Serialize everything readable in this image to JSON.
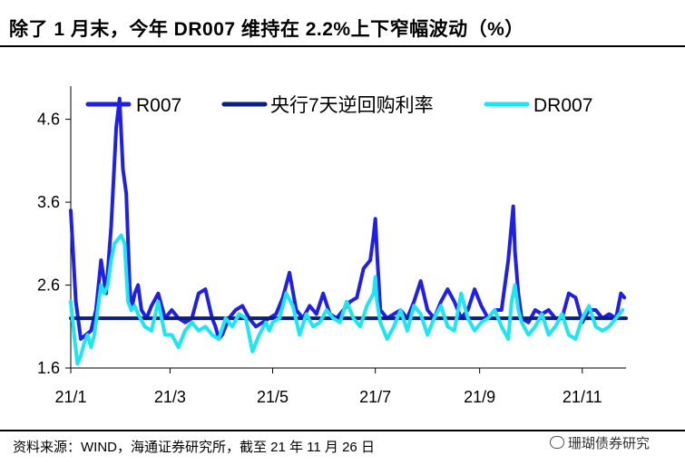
{
  "title": "除了 1 月末，今年 DR007 维持在 2.2%上下窄幅波动（%）",
  "source": "资料来源：WIND，海通证券研究所，截至 21 年 11 月 26 日",
  "watermark": "珊瑚债券研究",
  "chart_data": {
    "type": "line",
    "title": "除了 1 月末，今年 DR007 维持在 2.2%上下窄幅波动（%）",
    "xlabel": "",
    "ylabel": "",
    "ylim": [
      1.6,
      5.0
    ],
    "yticks": [
      1.6,
      2.6,
      3.6,
      4.6
    ],
    "ytick_labels": [
      "1.6",
      "2.6",
      "3.6",
      "4.6"
    ],
    "xlim": [
      0,
      330
    ],
    "xticks": [
      0,
      59,
      120,
      181,
      243,
      304
    ],
    "xtick_labels": [
      "21/1",
      "21/3",
      "21/5",
      "21/7",
      "21/9",
      "21/11"
    ],
    "legend_position": "top",
    "series": [
      {
        "name": "R007",
        "color": "#1f1fe6",
        "x": [
          0,
          3,
          6,
          9,
          12,
          15,
          18,
          21,
          24,
          27,
          29,
          31,
          33,
          35,
          36,
          38,
          40,
          42,
          45,
          48,
          52,
          56,
          60,
          64,
          68,
          72,
          76,
          80,
          84,
          86,
          88,
          90,
          94,
          98,
          102,
          106,
          110,
          114,
          118,
          122,
          126,
          130,
          134,
          138,
          142,
          146,
          150,
          154,
          158,
          162,
          166,
          170,
          174,
          178,
          180,
          181,
          182,
          184,
          188,
          192,
          196,
          200,
          204,
          208,
          212,
          216,
          220,
          224,
          228,
          232,
          236,
          240,
          244,
          248,
          252,
          256,
          260,
          263,
          264,
          266,
          268,
          272,
          276,
          280,
          284,
          288,
          292,
          296,
          300,
          304,
          308,
          312,
          316,
          320,
          324,
          327,
          329
        ],
        "values": [
          3.5,
          2.4,
          1.95,
          2.0,
          2.05,
          2.3,
          2.9,
          2.5,
          3.3,
          4.5,
          4.85,
          4.0,
          3.7,
          2.6,
          2.3,
          2.5,
          2.6,
          2.3,
          2.2,
          2.35,
          2.5,
          2.2,
          2.3,
          2.2,
          2.15,
          2.2,
          2.5,
          2.55,
          2.2,
          2.1,
          1.95,
          2.0,
          2.2,
          2.3,
          2.35,
          2.2,
          2.1,
          2.15,
          2.2,
          2.25,
          2.45,
          2.75,
          2.3,
          2.2,
          2.35,
          2.25,
          2.5,
          2.25,
          2.2,
          2.3,
          2.4,
          2.45,
          2.8,
          2.9,
          3.2,
          3.4,
          3.0,
          2.3,
          2.2,
          2.25,
          2.3,
          2.2,
          2.4,
          2.65,
          2.3,
          2.2,
          2.4,
          2.55,
          2.4,
          2.2,
          2.3,
          2.55,
          2.35,
          2.2,
          2.3,
          2.3,
          2.9,
          3.55,
          3.0,
          2.5,
          2.2,
          2.15,
          2.3,
          2.25,
          2.3,
          2.2,
          2.2,
          2.5,
          2.45,
          2.15,
          2.3,
          2.3,
          2.2,
          2.25,
          2.2,
          2.5,
          2.45
        ]
      },
      {
        "name": "央行7天逆回购利率",
        "color": "#0a1f80",
        "x": [
          0,
          330
        ],
        "values": [
          2.2,
          2.2
        ]
      },
      {
        "name": "DR007",
        "color": "#1ee6f0",
        "x": [
          0,
          2,
          4,
          6,
          8,
          10,
          12,
          14,
          16,
          18,
          20,
          22,
          24,
          26,
          28,
          30,
          32,
          34,
          36,
          38,
          40,
          44,
          48,
          52,
          56,
          60,
          64,
          68,
          72,
          76,
          80,
          84,
          88,
          92,
          96,
          100,
          104,
          108,
          112,
          116,
          118,
          120,
          124,
          128,
          132,
          136,
          140,
          144,
          148,
          152,
          156,
          160,
          164,
          168,
          172,
          176,
          180,
          181,
          182,
          184,
          188,
          192,
          196,
          200,
          204,
          208,
          212,
          216,
          220,
          224,
          228,
          232,
          236,
          240,
          244,
          248,
          252,
          256,
          260,
          262,
          264,
          266,
          268,
          272,
          276,
          280,
          284,
          288,
          292,
          296,
          300,
          304,
          308,
          312,
          316,
          320,
          324,
          328
        ],
        "values": [
          2.4,
          2.0,
          1.65,
          1.75,
          1.9,
          2.0,
          1.85,
          2.0,
          2.3,
          2.6,
          2.5,
          2.6,
          2.9,
          3.1,
          3.15,
          3.2,
          3.1,
          2.4,
          2.3,
          2.35,
          2.25,
          2.1,
          2.05,
          2.4,
          2.0,
          2.0,
          1.85,
          2.05,
          2.15,
          2.05,
          2.1,
          2.0,
          1.95,
          2.2,
          2.1,
          2.25,
          2.2,
          1.8,
          2.0,
          2.15,
          2.05,
          2.15,
          2.2,
          2.5,
          2.35,
          2.0,
          2.25,
          2.1,
          2.15,
          2.3,
          2.2,
          2.15,
          2.4,
          2.2,
          2.1,
          2.35,
          2.5,
          2.7,
          2.4,
          2.15,
          1.95,
          2.1,
          2.3,
          2.05,
          2.35,
          2.25,
          2.0,
          2.2,
          2.35,
          2.1,
          2.05,
          2.5,
          2.2,
          2.05,
          2.15,
          2.2,
          2.3,
          2.1,
          1.95,
          2.4,
          2.6,
          2.3,
          2.15,
          2.0,
          2.1,
          2.25,
          2.0,
          2.1,
          2.25,
          2.0,
          1.95,
          2.2,
          2.35,
          2.1,
          2.05,
          2.1,
          2.2,
          2.3
        ]
      }
    ]
  }
}
